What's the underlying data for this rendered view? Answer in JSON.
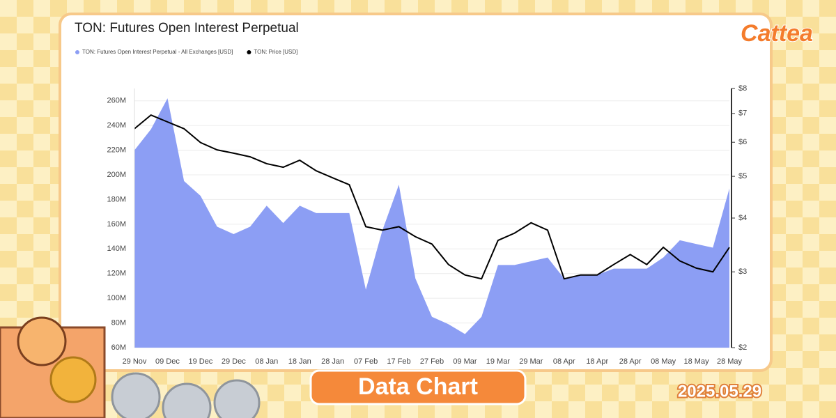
{
  "chart_data": {
    "type": "area",
    "title": "TON: Futures Open Interest Perpetual",
    "categories": [
      "29 Nov",
      null,
      "09 Dec",
      null,
      "19 Dec",
      null,
      "29 Dec",
      null,
      "08 Jan",
      null,
      "18 Jan",
      null,
      "28 Jan",
      null,
      "07 Feb",
      null,
      "17 Feb",
      null,
      "27 Feb",
      null,
      "09 Mar",
      null,
      "19 Mar",
      null,
      "29 Mar",
      null,
      "08 Apr",
      null,
      "18 Apr",
      null,
      "28 Apr",
      null,
      "08 May",
      null,
      "18 May",
      null,
      "28 May"
    ],
    "series": [
      {
        "name": "TON: Futures Open Interest Perpetual - All Exchanges [USD]",
        "type": "area",
        "axis": "y",
        "color": "#8c9ef4",
        "values": [
          220,
          237,
          262,
          195,
          183,
          158,
          152,
          158,
          175,
          161,
          175,
          169,
          169,
          169,
          107,
          155,
          192,
          116,
          85,
          79,
          71,
          85,
          127,
          127,
          130,
          133,
          116,
          119,
          119,
          124,
          124,
          124,
          133,
          147,
          144,
          141,
          189
        ]
      },
      {
        "name": "TON: Price [USD]",
        "type": "line",
        "axis": "y2",
        "color": "#000000",
        "values": [
          6.45,
          6.94,
          6.69,
          6.45,
          5.99,
          5.76,
          5.66,
          5.55,
          5.35,
          5.25,
          5.45,
          5.15,
          4.96,
          4.78,
          3.82,
          3.75,
          3.82,
          3.62,
          3.48,
          3.12,
          2.95,
          2.89,
          3.55,
          3.69,
          3.9,
          3.75,
          2.89,
          2.95,
          2.95,
          3.12,
          3.29,
          3.12,
          3.42,
          3.18,
          3.06,
          3.0,
          3.42
        ]
      }
    ],
    "ylim": [
      60,
      270
    ],
    "yticks": [
      {
        "value": 60,
        "label": "60M"
      },
      {
        "value": 80,
        "label": "80M"
      },
      {
        "value": 100,
        "label": "100M"
      },
      {
        "value": 120,
        "label": "120M"
      },
      {
        "value": 140,
        "label": "140M"
      },
      {
        "value": 160,
        "label": "160M"
      },
      {
        "value": 180,
        "label": "180M"
      },
      {
        "value": 200,
        "label": "200M"
      },
      {
        "value": 220,
        "label": "220M"
      },
      {
        "value": 240,
        "label": "240M"
      },
      {
        "value": 260,
        "label": "260M"
      }
    ],
    "y2lim": [
      2,
      8
    ],
    "y2scale": "log",
    "y2ticks": [
      {
        "value": 2,
        "label": "$2"
      },
      {
        "value": 3,
        "label": "$3"
      },
      {
        "value": 4,
        "label": "$4"
      },
      {
        "value": 5,
        "label": "$5"
      },
      {
        "value": 6,
        "label": "$6"
      },
      {
        "value": 7,
        "label": "$7"
      },
      {
        "value": 8,
        "label": "$8"
      }
    ],
    "grid": true,
    "legend": "top-left"
  },
  "logo": "Cattea",
  "banner": "Data Chart",
  "date": "2025.05.29"
}
